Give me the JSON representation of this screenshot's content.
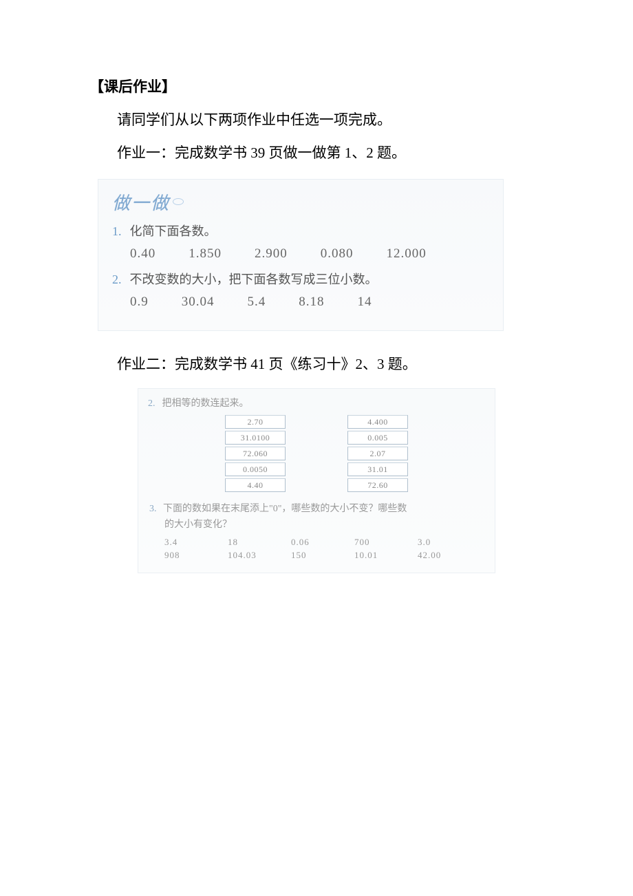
{
  "section_title": "【课后作业】",
  "instruction": "请同学们从以下两项作业中任选一项完成。",
  "hw1_line": "作业一：完成数学书 39 页做一做第 1、2 题。",
  "ex1": {
    "doit_label": "做一做",
    "q1_num": "1.",
    "q1_text": "化简下面各数。",
    "q1_values": [
      "0.40",
      "1.850",
      "2.900",
      "0.080",
      "12.000"
    ],
    "q2_num": "2.",
    "q2_text": "不改变数的大小，把下面各数写成三位小数。",
    "q2_values": [
      "0.9",
      "30.04",
      "5.4",
      "8.18",
      "14"
    ]
  },
  "hw2_line": "作业二：完成数学书 41 页《练习十》2、3 题。",
  "ex2": {
    "q2_num": "2.",
    "q2_text": "把相等的数连起来。",
    "left_boxes": [
      "2.70",
      "31.0100",
      "72.060",
      "0.0050",
      "4.40"
    ],
    "right_boxes": [
      "4.400",
      "0.005",
      "2.07",
      "31.01",
      "72.60"
    ],
    "q3_num": "3.",
    "q3_text1": "下面的数如果在末尾添上\"0\"，哪些数的大小不变？哪些数",
    "q3_text2": "的大小有变化？",
    "q3_row1": [
      "3.4",
      "18",
      "0.06",
      "700",
      "3.0"
    ],
    "q3_row2": [
      "908",
      "104.03",
      "150",
      "10.01",
      "42.00"
    ]
  },
  "colors": {
    "title_color": "#000000",
    "blue_heading": "#7fa8d0",
    "blue_num": "#6b9bc8",
    "gray_text": "#666666",
    "light_gray": "#999999",
    "box_border": "#b0c0ce",
    "panel_bg": "#f8fafb"
  }
}
